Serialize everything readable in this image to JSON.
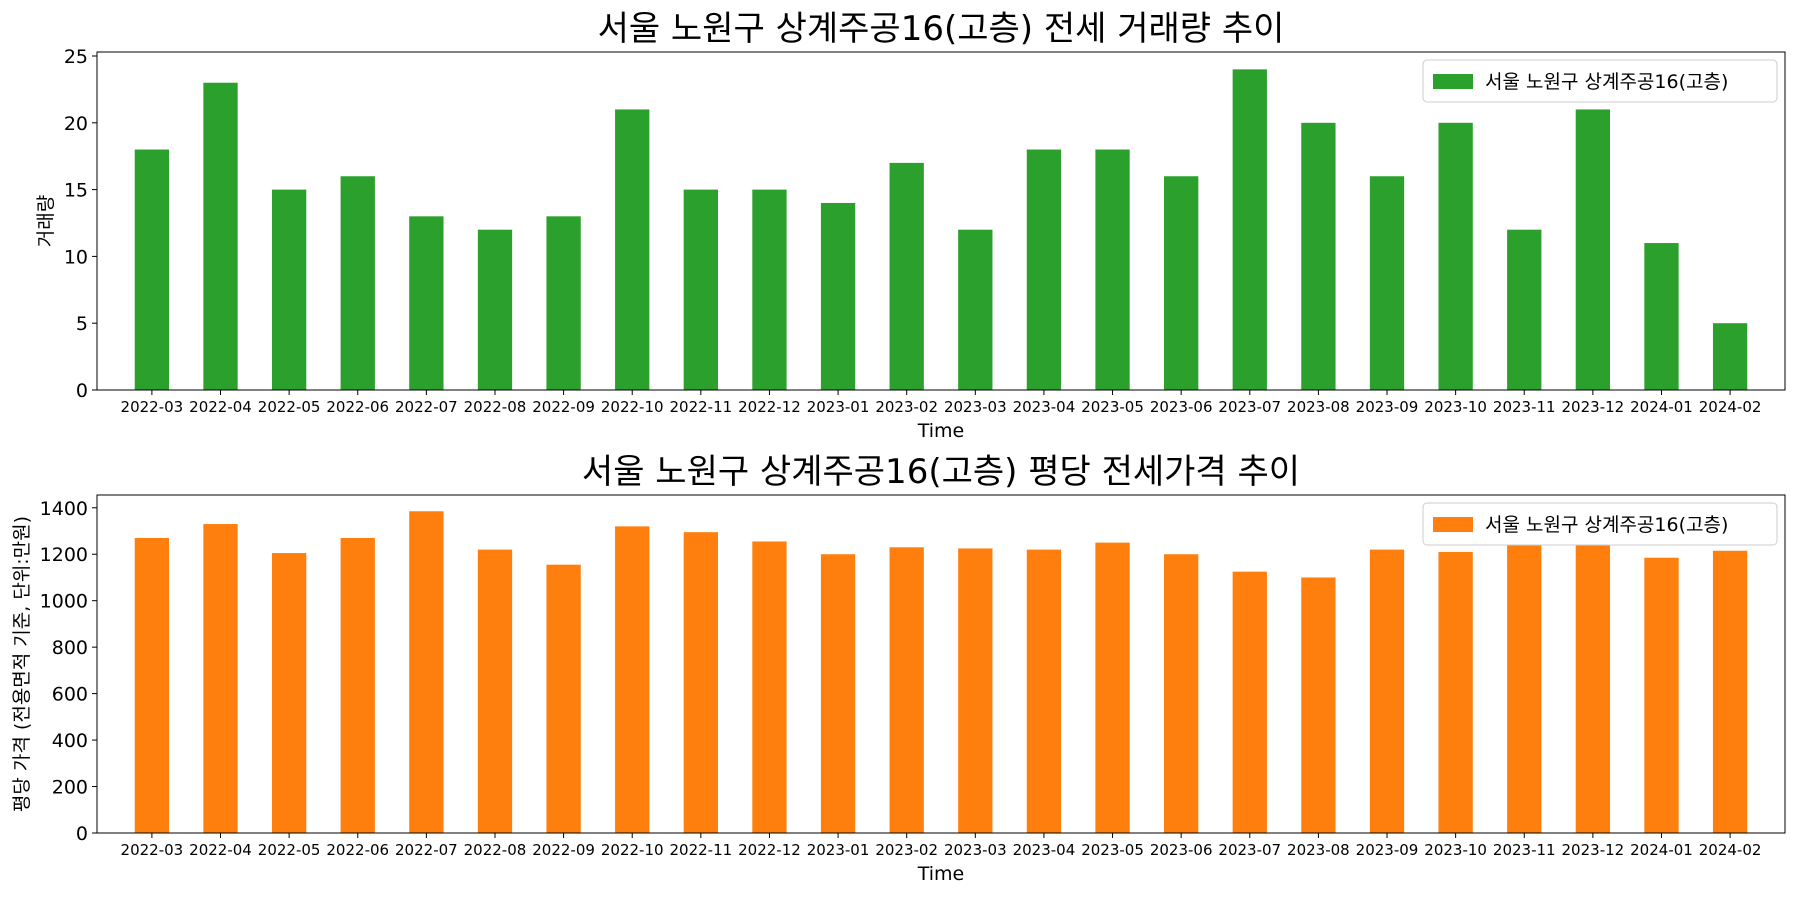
{
  "chart_data": [
    {
      "type": "bar",
      "title": "서울 노원구 상계주공16(고층) 전세 거래량 추이",
      "xlabel": "Time",
      "ylabel": "거래량",
      "ylim": [
        0,
        25.3
      ],
      "yticks": [
        "0",
        "5",
        "10",
        "15",
        "20",
        "25"
      ],
      "categories": [
        "2022-03",
        "2022-04",
        "2022-05",
        "2022-06",
        "2022-07",
        "2022-08",
        "2022-09",
        "2022-10",
        "2022-11",
        "2022-12",
        "2023-01",
        "2023-02",
        "2023-03",
        "2023-04",
        "2023-05",
        "2023-06",
        "2023-07",
        "2023-08",
        "2023-09",
        "2023-10",
        "2023-11",
        "2023-12",
        "2024-01",
        "2024-02"
      ],
      "series": [
        {
          "name": "서울 노원구 상계주공16(고층)",
          "color": "#2ca02c",
          "values": [
            18,
            23,
            15,
            16,
            13,
            12,
            13,
            21,
            15,
            15,
            14,
            17,
            12,
            18,
            18,
            16,
            24,
            20,
            16,
            20,
            12,
            21,
            11,
            5
          ]
        }
      ],
      "grid": false,
      "legend": "top-right"
    },
    {
      "type": "bar",
      "title": "서울 노원구 상계주공16(고층) 평당 전세가격 추이",
      "xlabel": "Time",
      "ylabel": "평당 가격 (전용면적 기준, 단위:만원)",
      "ylim": [
        0,
        1455
      ],
      "yticks": [
        "0",
        "200",
        "400",
        "600",
        "800",
        "1000",
        "1200",
        "1400"
      ],
      "categories": [
        "2022-03",
        "2022-04",
        "2022-05",
        "2022-06",
        "2022-07",
        "2022-08",
        "2022-09",
        "2022-10",
        "2022-11",
        "2022-12",
        "2023-01",
        "2023-02",
        "2023-03",
        "2023-04",
        "2023-05",
        "2023-06",
        "2023-07",
        "2023-08",
        "2023-09",
        "2023-10",
        "2023-11",
        "2023-12",
        "2024-01",
        "2024-02"
      ],
      "series": [
        {
          "name": "서울 노원구 상계주공16(고층)",
          "color": "#ff7f0e",
          "values": [
            1270,
            1330,
            1205,
            1270,
            1385,
            1220,
            1155,
            1320,
            1295,
            1255,
            1200,
            1230,
            1225,
            1220,
            1250,
            1200,
            1125,
            1100,
            1220,
            1210,
            1240,
            1240,
            1185,
            1215
          ]
        }
      ],
      "grid": false,
      "legend": "top-right"
    }
  ]
}
